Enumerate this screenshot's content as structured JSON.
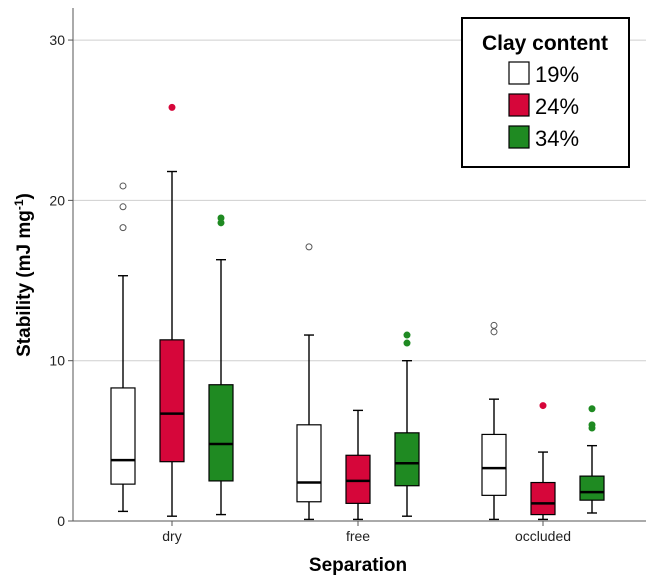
{
  "chart_data": {
    "type": "box",
    "xlabel": "Separation",
    "ylabel": "Stability (mJ mg",
    "ylabel_sup": "-1",
    "ylabel_close": ")",
    "ylim": [
      0,
      32
    ],
    "yticks": [
      0,
      10,
      20,
      30
    ],
    "grid": true,
    "categories": [
      "dry",
      "free",
      "occluded"
    ],
    "legend": {
      "title": "Clay content",
      "position": "top-right",
      "entries": [
        {
          "label": "19%",
          "color": "#ffffff"
        },
        {
          "label": "24%",
          "color": "#d6063a"
        },
        {
          "label": "34%",
          "color": "#1f8a22"
        }
      ]
    },
    "series": [
      {
        "name": "19%",
        "color": "#ffffff",
        "boxes": [
          {
            "category": "dry",
            "whisker_low": 0.6,
            "q1": 2.3,
            "median": 3.8,
            "q3": 8.3,
            "whisker_high": 15.3,
            "outliers": [
              18.3,
              19.6,
              20.9
            ]
          },
          {
            "category": "free",
            "whisker_low": 0.1,
            "q1": 1.2,
            "median": 2.4,
            "q3": 6.0,
            "whisker_high": 11.6,
            "outliers": [
              17.1
            ]
          },
          {
            "category": "occluded",
            "whisker_low": 0.1,
            "q1": 1.6,
            "median": 3.3,
            "q3": 5.4,
            "whisker_high": 7.6,
            "outliers": [
              11.8,
              12.2
            ]
          }
        ]
      },
      {
        "name": "24%",
        "color": "#d6063a",
        "boxes": [
          {
            "category": "dry",
            "whisker_low": 0.3,
            "q1": 3.7,
            "median": 6.7,
            "q3": 11.3,
            "whisker_high": 21.8,
            "outliers": [
              25.8
            ]
          },
          {
            "category": "free",
            "whisker_low": 0.1,
            "q1": 1.1,
            "median": 2.5,
            "q3": 4.1,
            "whisker_high": 6.9,
            "outliers": []
          },
          {
            "category": "occluded",
            "whisker_low": 0.1,
            "q1": 0.4,
            "median": 1.1,
            "q3": 2.4,
            "whisker_high": 4.3,
            "outliers": [
              7.2
            ]
          }
        ]
      },
      {
        "name": "34%",
        "color": "#1f8a22",
        "boxes": [
          {
            "category": "dry",
            "whisker_low": 0.4,
            "q1": 2.5,
            "median": 4.8,
            "q3": 8.5,
            "whisker_high": 16.3,
            "outliers": [
              18.6,
              18.9
            ]
          },
          {
            "category": "free",
            "whisker_low": 0.3,
            "q1": 2.2,
            "median": 3.6,
            "q3": 5.5,
            "whisker_high": 10.0,
            "outliers": [
              11.1,
              11.6
            ]
          },
          {
            "category": "occluded",
            "whisker_low": 0.5,
            "q1": 1.3,
            "median": 1.8,
            "q3": 2.8,
            "whisker_high": 4.7,
            "outliers": [
              5.8,
              6.0,
              7.0
            ]
          }
        ]
      }
    ]
  }
}
